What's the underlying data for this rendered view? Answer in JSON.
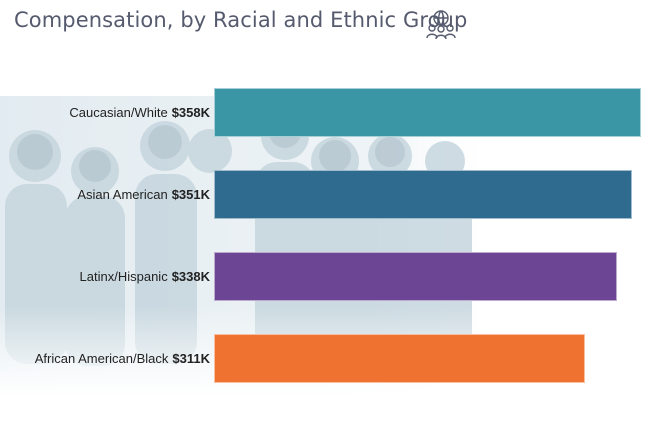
{
  "title": "Compensation, by Racial and Ethnic Group",
  "title_icon": "people-globe-icon",
  "colors": {
    "title": "#555a6e",
    "caucasian": "#3a96a4",
    "asian": "#2e6b8e",
    "latinx": "#6c4595",
    "african": "#f07230"
  },
  "chart_data": {
    "type": "bar",
    "orientation": "horizontal",
    "title": "Compensation, by Racial and Ethnic Group",
    "categories": [
      "Caucasian/White",
      "Asian American",
      "Latinx/Hispanic",
      "African American/Black"
    ],
    "values": [
      358,
      351,
      338,
      311
    ],
    "value_labels": [
      "$358K",
      "$351K",
      "$338K",
      "$311K"
    ],
    "unit": "$K",
    "colors": [
      "#3a96a4",
      "#2e6b8e",
      "#6c4595",
      "#f07230"
    ],
    "xlim": [
      0,
      360
    ],
    "grid": false,
    "legend": "none"
  }
}
